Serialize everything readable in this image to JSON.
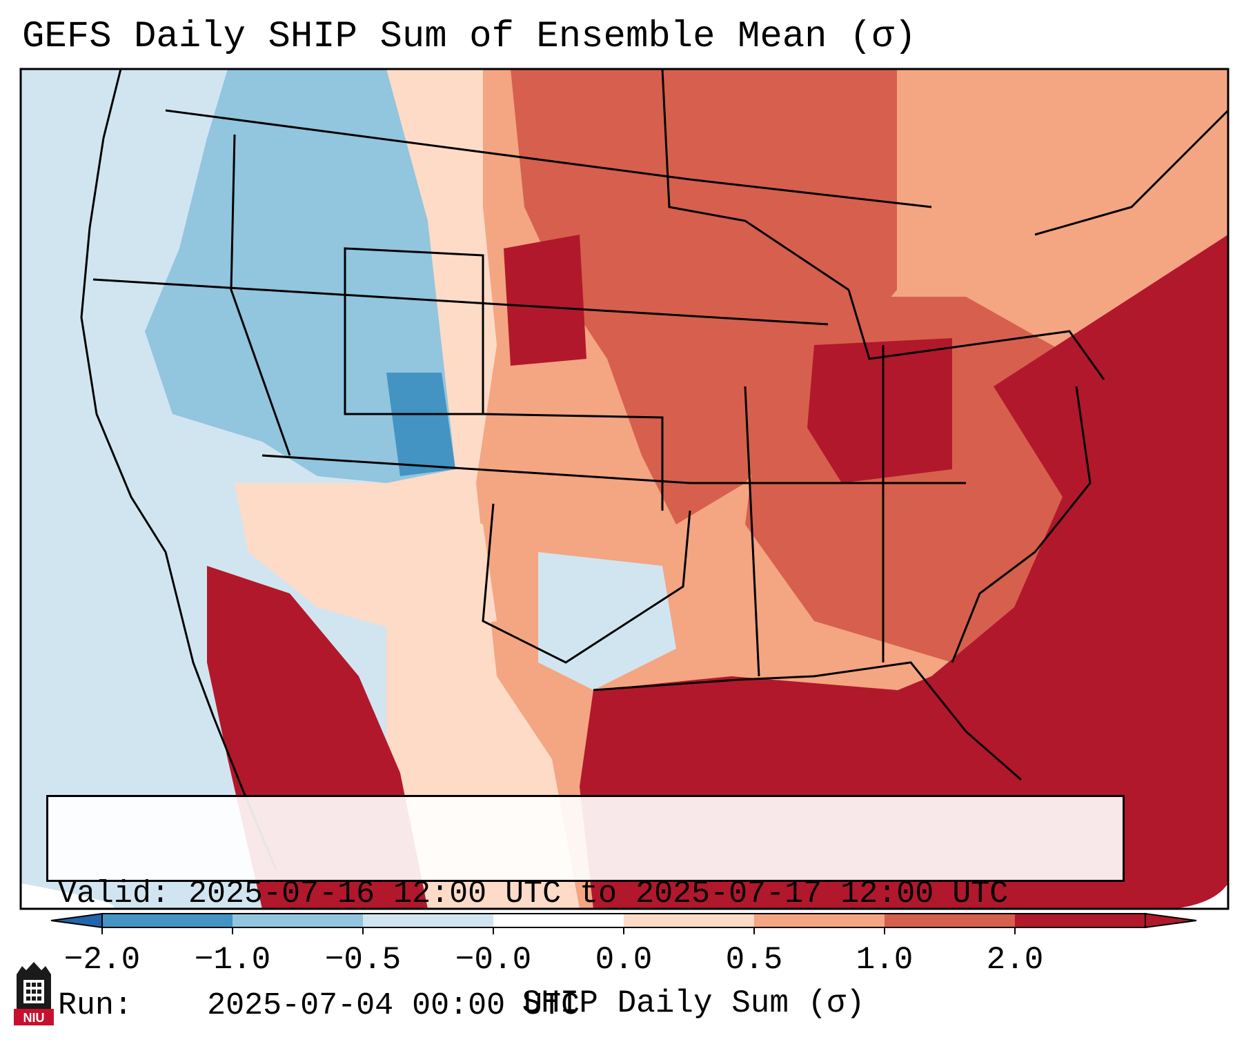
{
  "title": "GEFS Daily SHIP Sum of Ensemble Mean (σ)",
  "info": {
    "valid_label": "Valid:",
    "valid_value": "2025-07-16 12:00 UTC to 2025-07-17 12:00 UTC",
    "run_label": "Run:",
    "run_value": "2025-07-04 00:00 UTC"
  },
  "colorbar": {
    "label": "SHIP Daily Sum (σ)",
    "ticks": [
      "−2.0",
      "−1.0",
      "−0.5",
      "−0.0",
      "0.0",
      "0.5",
      "1.0",
      "2.0"
    ],
    "colors": [
      "#4393c3",
      "#92c5de",
      "#d1e5f0",
      "#ffffff",
      "#fddbc7",
      "#f4a582",
      "#d6604d",
      "#b2182b"
    ],
    "under_color": "#2166ac",
    "over_color": "#b2182b"
  },
  "logo": {
    "text": "NIU"
  },
  "icons": {
    "logo": "university-tower-icon"
  }
}
